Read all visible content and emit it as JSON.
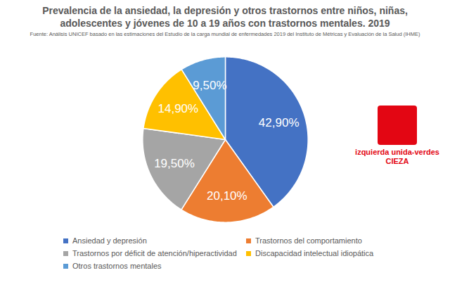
{
  "chart_data": {
    "type": "pie",
    "title": "Prevalencia de la ansiedad, la depresión y otros trastornos entre niños, niñas, adolescentes y jóvenes de 10 a 19 años con trastornos mentales. 2019",
    "subtitle": "Fuente: Análisis UNICEF basado en las estimaciones del Estudio de la carga mundial de enfermedades 2019 del Instituto de Métricas y Evaluación de la Salud (IHME)",
    "categories": [
      "Ansiedad y depresión",
      "Trastornos del comportamiento",
      "Trastornos por déficit de atención/hiperactividad",
      "Discapacidad intelectual idiopática",
      "Otros trastornos mentales"
    ],
    "values": [
      42.9,
      20.1,
      19.5,
      14.9,
      9.5
    ],
    "value_labels": [
      "42,90%",
      "20,10%",
      "19,50%",
      "14,90%",
      "9,50%"
    ],
    "colors": [
      "#4472c4",
      "#ed7d31",
      "#a5a5a5",
      "#ffc000",
      "#5b9bd5"
    ],
    "data_labels": true,
    "legend": "bottom",
    "annotations": [
      "izquierda unida-verdes",
      "CIEZA"
    ]
  }
}
